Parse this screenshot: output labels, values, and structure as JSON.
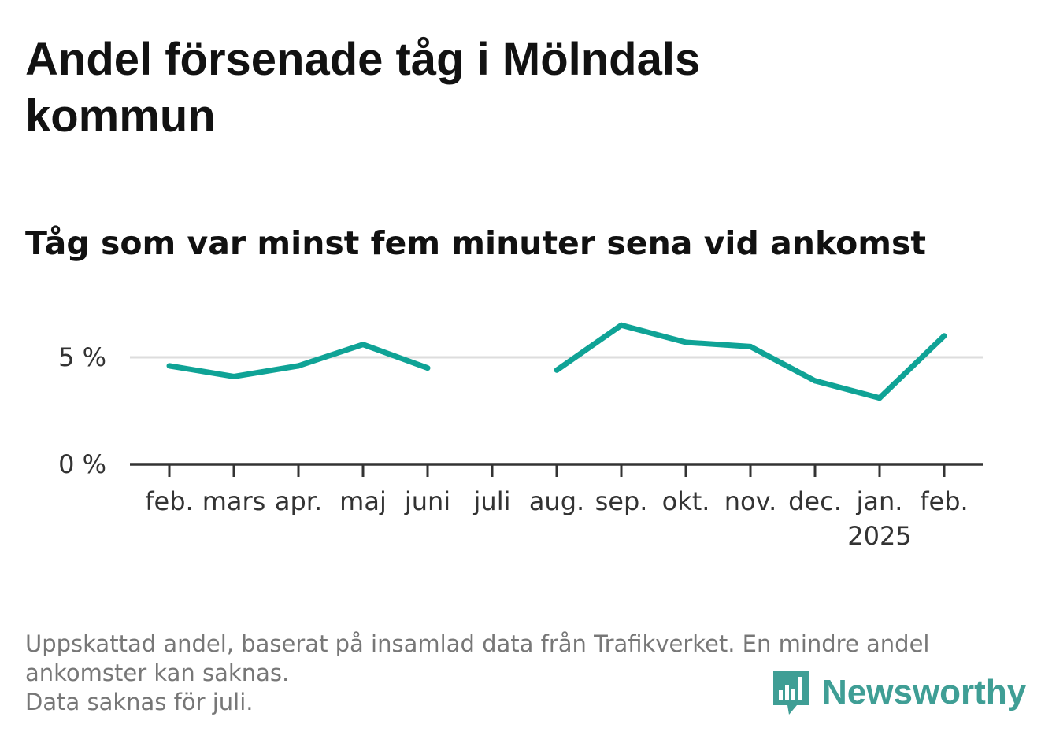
{
  "title": "Andel försenade tåg i Mölndals kommun",
  "subtitle": "Tåg som var minst fem minuter sena vid ankomst",
  "footer": {
    "note_line1": "Uppskattad andel, baserat på insamlad data från Trafikverket. En mindre andel",
    "note_line2": "ankomster kan saknas.",
    "note_line3": "Data saknas för juli."
  },
  "brand": {
    "name": "Newsworthy",
    "icon": "newsworthy-logo-icon",
    "color": "#3f9e95"
  },
  "colors": {
    "line": "#0fa396",
    "grid": "#dddddd",
    "axis": "#333333"
  },
  "chart_data": {
    "type": "line",
    "categories": [
      "feb.",
      "mars",
      "apr.",
      "maj",
      "juni",
      "juli",
      "aug.",
      "sep.",
      "okt.",
      "nov.",
      "dec.",
      "jan.",
      "feb."
    ],
    "year_labels": [
      "",
      "",
      "",
      "",
      "",
      "",
      "",
      "",
      "",
      "",
      "",
      "2025",
      ""
    ],
    "series": [
      {
        "values": [
          4.6,
          4.1,
          4.6,
          5.6,
          4.5,
          null,
          4.4,
          6.5,
          5.7,
          5.5,
          3.9,
          3.1,
          6.0
        ]
      }
    ],
    "y_ticks": [
      0,
      5
    ],
    "y_tick_labels": [
      "0 %",
      "5 %"
    ],
    "ylim": [
      0,
      8
    ],
    "grid": true,
    "legend": "none"
  }
}
